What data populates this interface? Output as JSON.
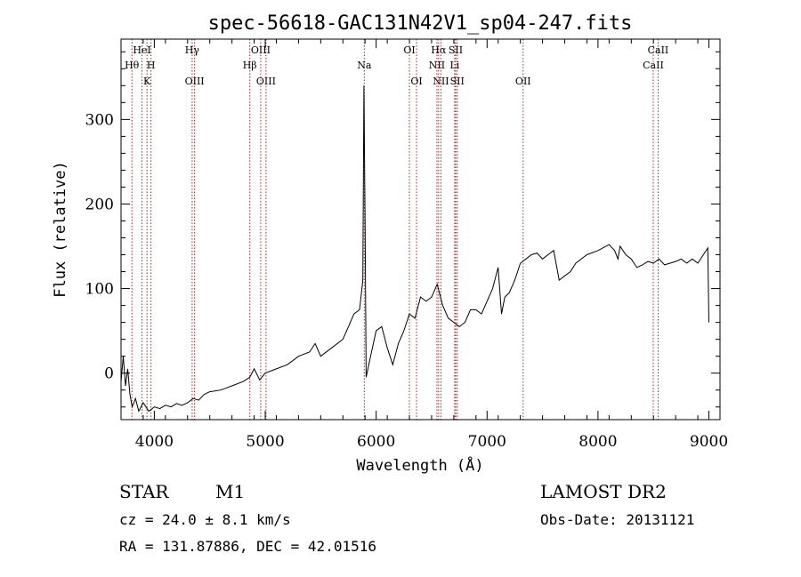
{
  "chart_data": {
    "type": "line",
    "title": "spec-56618-GAC131N42V1_sp04-247.fits",
    "xlabel": "Wavelength (Å)",
    "ylabel": "Flux (relative)",
    "xlim": [
      3700,
      9100
    ],
    "ylim": [
      -55,
      395
    ],
    "x_ticks": [
      4000,
      5000,
      6000,
      7000,
      8000,
      9000
    ],
    "y_ticks": [
      0,
      100,
      200,
      300
    ],
    "grid": false,
    "series": [
      {
        "color": "#000000",
        "x": [
          3700,
          3720,
          3740,
          3760,
          3780,
          3800,
          3830,
          3860,
          3900,
          3950,
          4000,
          4050,
          4100,
          4150,
          4200,
          4250,
          4300,
          4350,
          4400,
          4450,
          4500,
          4600,
          4700,
          4800,
          4860,
          4900,
          4950,
          5000,
          5100,
          5200,
          5300,
          5400,
          5450,
          5500,
          5600,
          5700,
          5750,
          5800,
          5850,
          5880,
          5890,
          5900,
          5910,
          5950,
          6000,
          6050,
          6100,
          6150,
          6200,
          6250,
          6300,
          6350,
          6400,
          6450,
          6500,
          6550,
          6600,
          6650,
          6700,
          6750,
          6800,
          6850,
          6900,
          6950,
          7000,
          7050,
          7100,
          7130,
          7160,
          7200,
          7250,
          7300,
          7350,
          7400,
          7450,
          7500,
          7550,
          7600,
          7650,
          7700,
          7750,
          7800,
          7900,
          8000,
          8100,
          8150,
          8180,
          8200,
          8250,
          8300,
          8350,
          8400,
          8450,
          8500,
          8550,
          8600,
          8650,
          8700,
          8750,
          8800,
          8850,
          8900,
          8950,
          8990,
          9000
        ],
        "y": [
          -10,
          20,
          -15,
          5,
          -25,
          -40,
          -30,
          -45,
          -35,
          -45,
          -40,
          -42,
          -38,
          -40,
          -36,
          -38,
          -35,
          -30,
          -32,
          -25,
          -22,
          -20,
          -15,
          -10,
          -5,
          5,
          -8,
          0,
          5,
          10,
          20,
          25,
          35,
          20,
          30,
          40,
          55,
          70,
          75,
          110,
          340,
          180,
          -5,
          20,
          50,
          55,
          30,
          10,
          35,
          50,
          70,
          65,
          90,
          85,
          90,
          105,
          80,
          65,
          60,
          55,
          60,
          75,
          75,
          70,
          85,
          100,
          125,
          70,
          90,
          95,
          110,
          130,
          135,
          140,
          142,
          135,
          140,
          145,
          110,
          115,
          120,
          130,
          140,
          145,
          152,
          145,
          135,
          150,
          140,
          135,
          125,
          128,
          132,
          130,
          135,
          128,
          130,
          132,
          135,
          130,
          135,
          130,
          140,
          148,
          60
        ]
      }
    ],
    "emission_lines": [
      {
        "label": "HeI",
        "x": 3889,
        "row": 0
      },
      {
        "label": "Hθ",
        "x": 3798,
        "row": 1
      },
      {
        "label": "H",
        "x": 3970,
        "row": 1
      },
      {
        "label": "K",
        "x": 3934,
        "row": 2
      },
      {
        "label": "Hγ",
        "x": 4341,
        "row": 0
      },
      {
        "label": "OIII",
        "x": 4363,
        "row": 2
      },
      {
        "label": "OIII",
        "x": 4959,
        "row": 0
      },
      {
        "label": "Hβ",
        "x": 4861,
        "row": 1
      },
      {
        "label": "OIII",
        "x": 5007,
        "row": 2
      },
      {
        "label": "Na",
        "x": 5893,
        "row": 1
      },
      {
        "label": "OI",
        "x": 6300,
        "row": 0
      },
      {
        "label": "OI",
        "x": 6364,
        "row": 2
      },
      {
        "label": "Hα",
        "x": 6563,
        "row": 0
      },
      {
        "label": "NII",
        "x": 6548,
        "row": 1
      },
      {
        "label": "NII",
        "x": 6584,
        "row": 2
      },
      {
        "label": "SII",
        "x": 6717,
        "row": 0
      },
      {
        "label": "Li",
        "x": 6708,
        "row": 1
      },
      {
        "label": "SII",
        "x": 6731,
        "row": 2
      },
      {
        "label": "OII",
        "x": 7325,
        "row": 2
      },
      {
        "label": "CaII",
        "x": 8542,
        "row": 0
      },
      {
        "label": "CaII",
        "x": 8498,
        "row": 1
      }
    ]
  },
  "info": {
    "class_label": "STAR",
    "subclass": "M1",
    "survey": "LAMOST DR2",
    "cz": "cz = 24.0 ± 8.1 km/s",
    "obs_date": "Obs-Date: 20131121",
    "radec": "RA = 131.87886, DEC =  42.01516"
  }
}
